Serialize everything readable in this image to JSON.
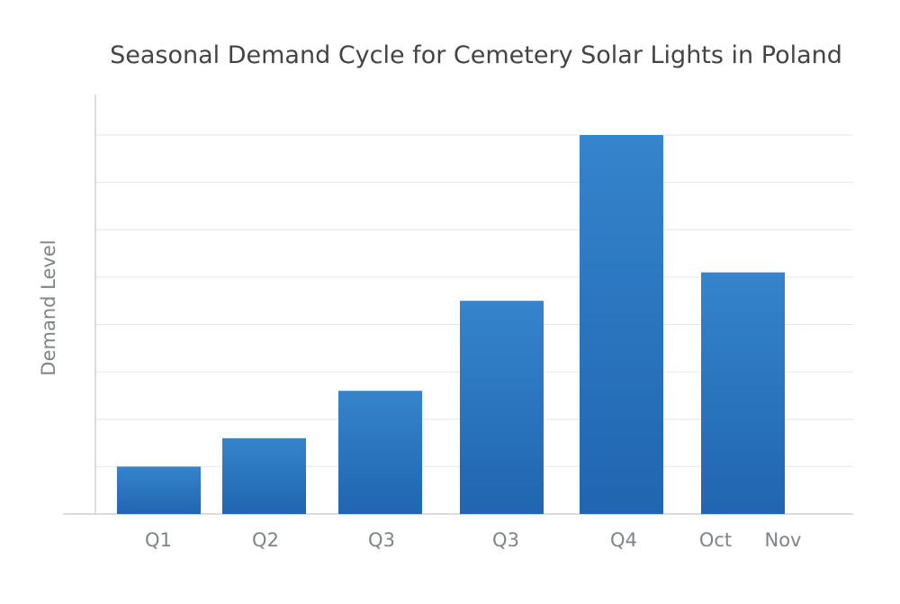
{
  "chart_data": {
    "type": "bar",
    "title": "Seasonal Demand Cycle for Cemetery Solar Lights in Poland",
    "xlabel": "",
    "ylabel": "Demand Level",
    "categories": [
      "Q1",
      "Q2",
      "Q3",
      "Q3",
      "Q4",
      "Oct–Nov"
    ],
    "tick_labels": [
      "Q1",
      "Q2",
      "Q3",
      "Q3",
      "Q4",
      "Oct",
      "Nov"
    ],
    "values": [
      1.0,
      1.6,
      2.6,
      4.5,
      8.0,
      5.1
    ],
    "ylim": [
      0,
      8
    ],
    "y_tick_labels_shown": false,
    "grid": true,
    "legend": "none",
    "colors": {
      "bar_top": "#3584cc",
      "bar_bottom": "#2065b0",
      "grid": "#e6e6e6",
      "axis": "#c8c8c8",
      "text": "#808488",
      "title": "#444444"
    }
  }
}
